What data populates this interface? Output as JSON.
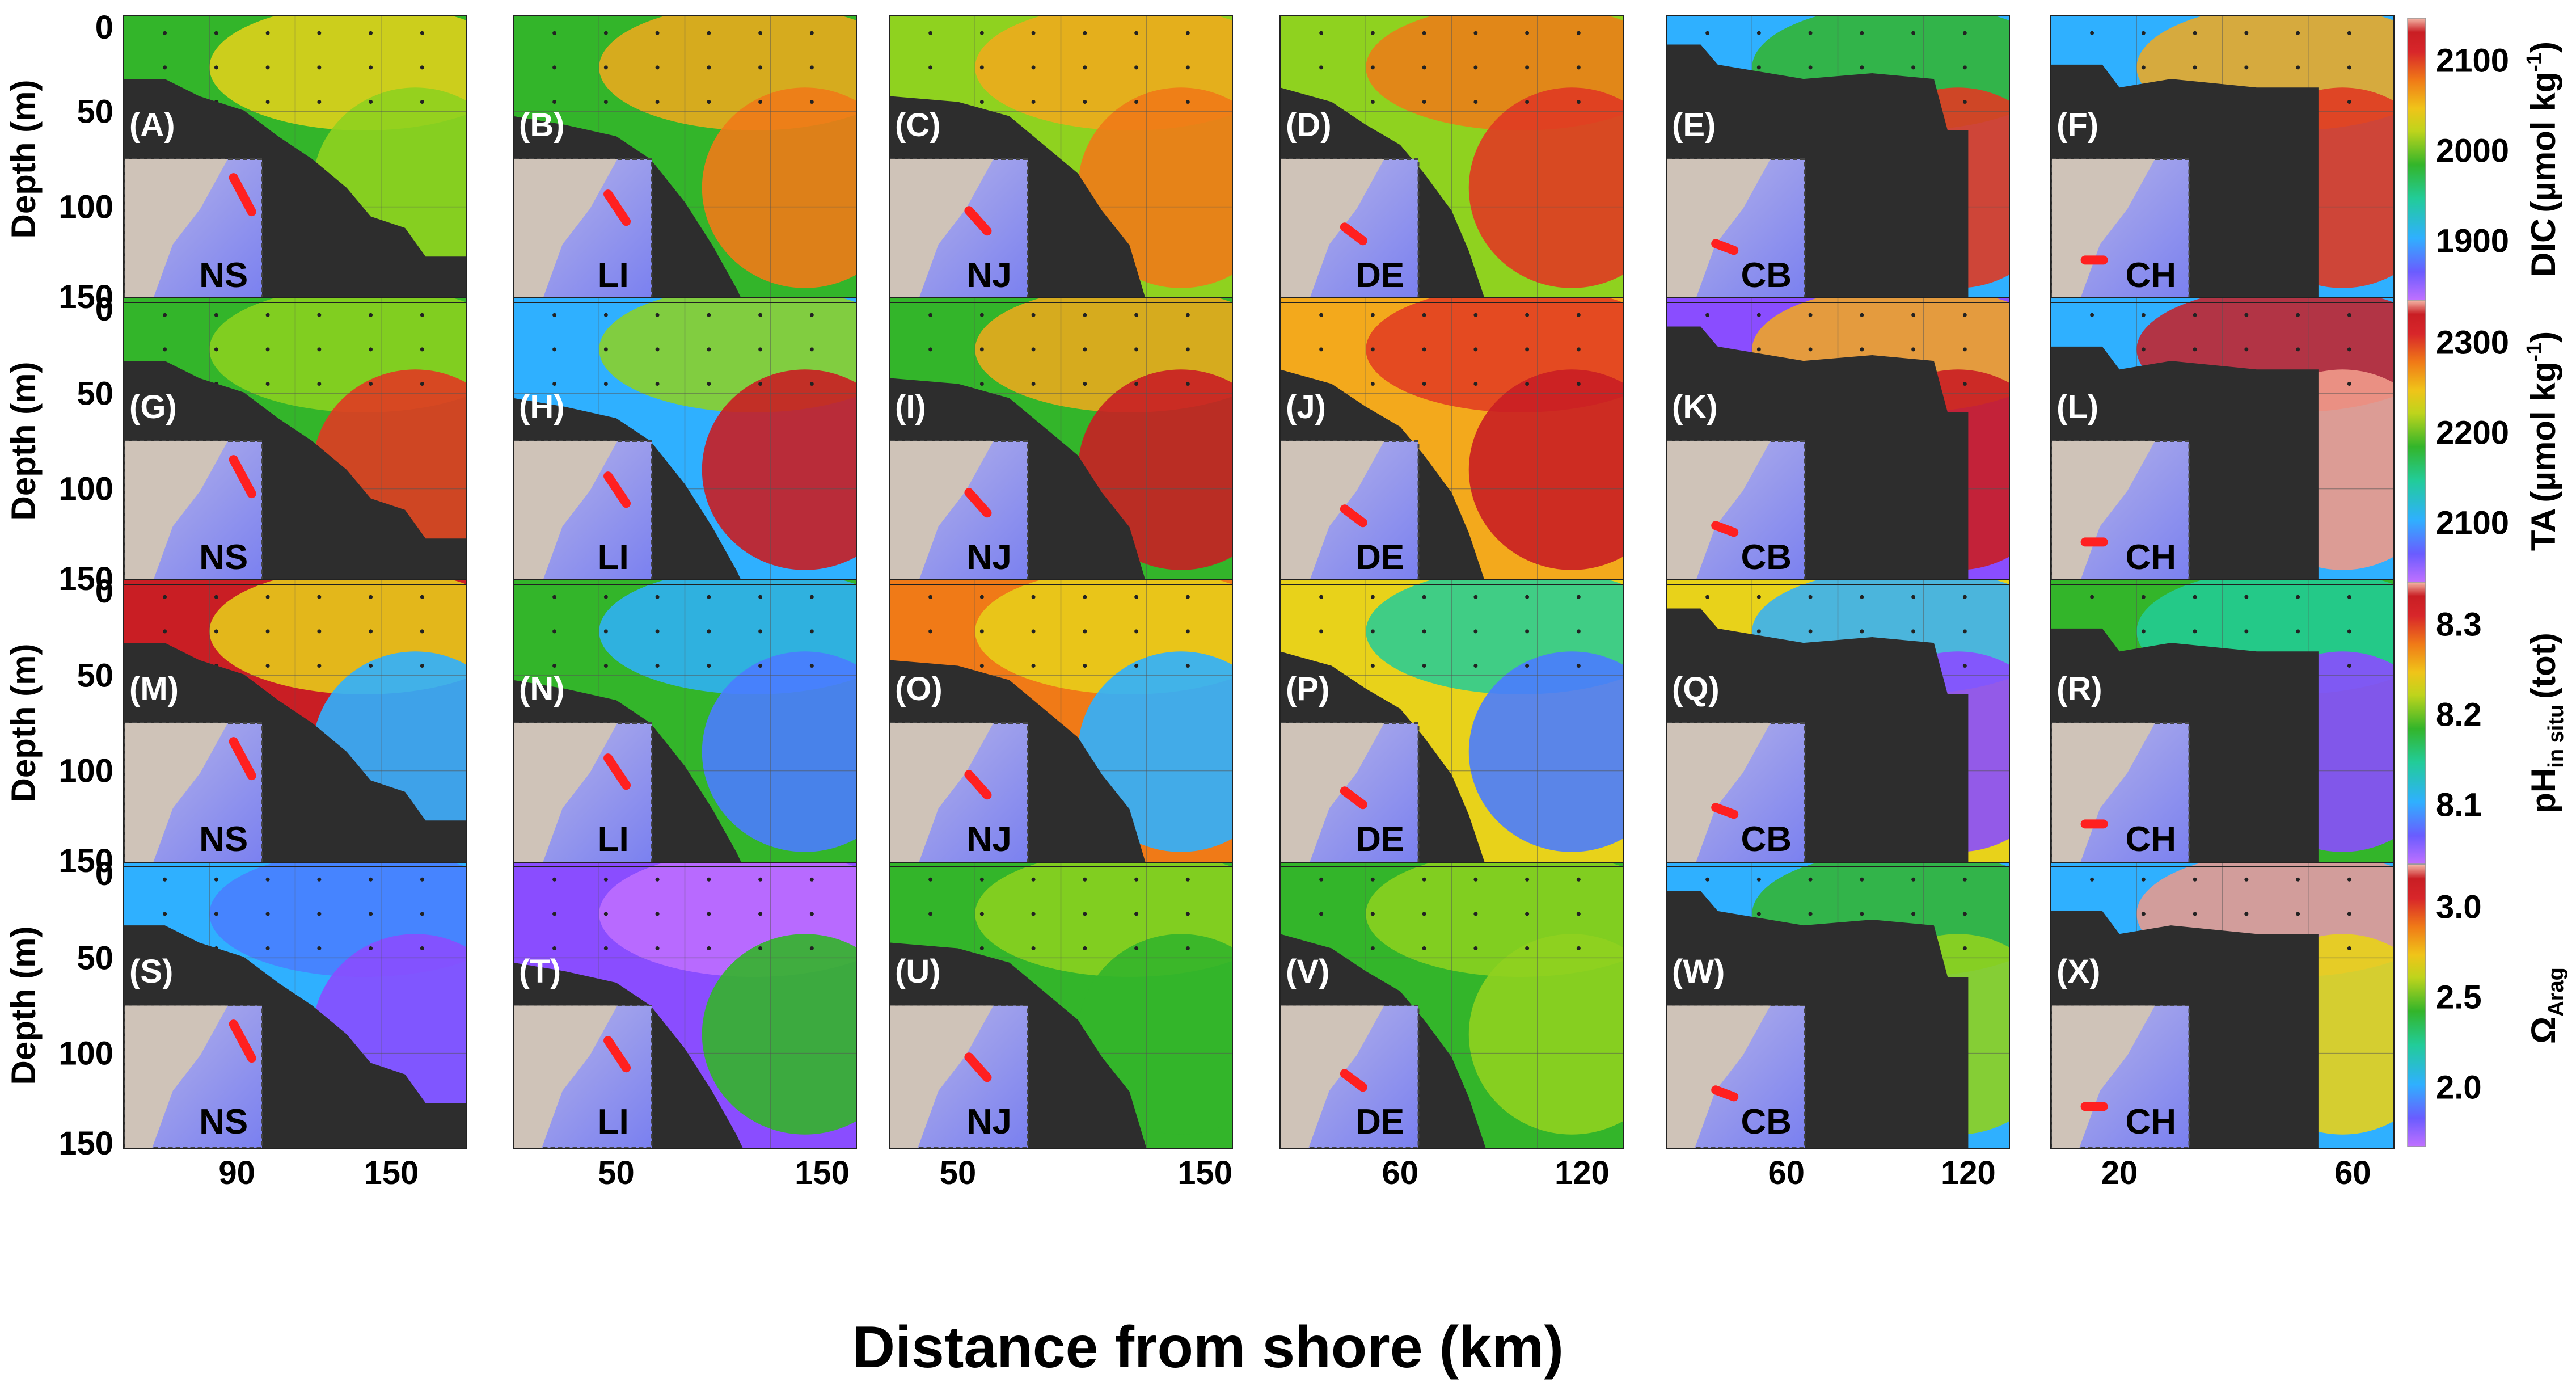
{
  "chart_data": {
    "type": "heatmap",
    "xlabel": "Distance from shore (km)",
    "ylabel": "Depth (m)",
    "ylim": [
      150,
      0
    ],
    "depth_ticks": [
      "0",
      "50",
      "100",
      "150"
    ],
    "columns": [
      {
        "site": "NS",
        "xticks": [
          "90",
          "150"
        ]
      },
      {
        "site": "LI",
        "xticks": [
          "50",
          "150"
        ]
      },
      {
        "site": "NJ",
        "xticks": [
          "50",
          "150"
        ]
      },
      {
        "site": "DE",
        "xticks": [
          "60",
          "120"
        ]
      },
      {
        "site": "CB",
        "xticks": [
          "60",
          "120"
        ]
      },
      {
        "site": "CH",
        "xticks": [
          "20",
          "60"
        ]
      }
    ],
    "rows": [
      {
        "variable": "DIC",
        "unit": "(µmol kg",
        "unit_sup": "-1",
        "unit_end": ")",
        "labels": [
          "(A)",
          "(B)",
          "(C)",
          "(D)",
          "(E)",
          "(F)"
        ],
        "colorbar_ticks": [
          "2100",
          "2000",
          "1900"
        ]
      },
      {
        "variable": "TA",
        "unit": "(µmol kg",
        "unit_sup": "-1",
        "unit_end": ")",
        "labels": [
          "(G)",
          "(H)",
          "(I)",
          "(J)",
          "(K)",
          "(L)"
        ],
        "colorbar_ticks": [
          "2300",
          "2200",
          "2100"
        ]
      },
      {
        "variable": "pH",
        "variable_sub": "in situ",
        "unit": "(tot)",
        "labels": [
          "(M)",
          "(N)",
          "(O)",
          "(P)",
          "(Q)",
          "(R)"
        ],
        "colorbar_ticks": [
          "8.3",
          "8.2",
          "8.1"
        ]
      },
      {
        "variable": "Ω",
        "variable_sub": "Arag",
        "labels": [
          "(S)",
          "(T)",
          "(U)",
          "(V)",
          "(W)",
          "(X)"
        ],
        "colorbar_ticks": [
          "3.0",
          "2.5",
          "2.0"
        ]
      }
    ]
  },
  "colors": {
    "bathymetry": "#2d2d2d",
    "track": "#ff2020",
    "colormap": [
      "#c070ff",
      "#8a4dff",
      "#4a7cff",
      "#2fb0ff",
      "#22cc99",
      "#33b52a",
      "#8fd21f",
      "#e8d21a",
      "#f3a91c",
      "#f07a17",
      "#e03a22",
      "#c91e24",
      "#ef9a8a"
    ]
  }
}
